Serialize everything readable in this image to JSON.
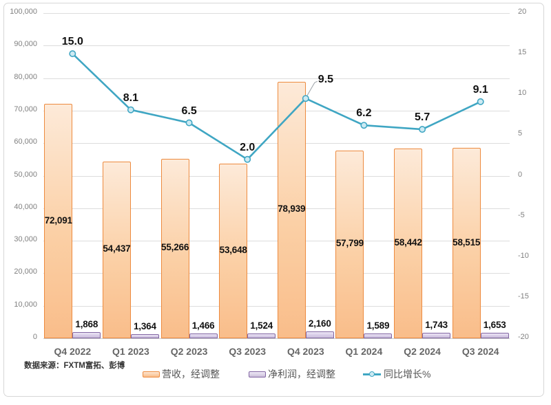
{
  "chart_data": {
    "type": "combo",
    "categories": [
      "Q4 2022",
      "Q1 2023",
      "Q2 2023",
      "Q3 2023",
      "Q4 2023",
      "Q1 2024",
      "Q2 2024",
      "Q3 2024"
    ],
    "series": [
      {
        "name": "营收，经调整",
        "type": "bar",
        "axis": "left",
        "color": "#ed8a3e",
        "values": [
          72091,
          54437,
          55266,
          53648,
          78939,
          57799,
          58442,
          58515
        ],
        "labels": [
          "72,091",
          "54,437",
          "55,266",
          "53,648",
          "78,939",
          "57,799",
          "58,442",
          "58,515"
        ]
      },
      {
        "name": "净利润，经调整",
        "type": "bar",
        "axis": "left",
        "color": "#8064a2",
        "values": [
          1868,
          1364,
          1466,
          1524,
          2160,
          1589,
          1743,
          1653
        ],
        "labels": [
          "1,868",
          "1,364",
          "1,466",
          "1,524",
          "2,160",
          "1,589",
          "1,743",
          "1,653"
        ]
      },
      {
        "name": "同比增长%",
        "type": "line",
        "axis": "right",
        "color": "#3fa6c3",
        "values": [
          15.0,
          8.1,
          6.5,
          2.0,
          9.5,
          6.2,
          5.7,
          9.1
        ],
        "labels": [
          "15.0",
          "8.1",
          "6.5",
          "2.0",
          "9.5",
          "6.2",
          "5.7",
          "9.1"
        ]
      }
    ],
    "left_axis": {
      "min": 0,
      "max": 100000,
      "step": 10000,
      "tick_labels": [
        "100,000",
        "90,000",
        "80,000",
        "70,000",
        "60,000",
        "50,000",
        "40,000",
        "30,000",
        "20,000",
        "10,000",
        "0"
      ]
    },
    "right_axis": {
      "min": -20,
      "max": 20,
      "step": 5,
      "tick_labels": [
        "20",
        "15",
        "10",
        "5",
        "0",
        "-5",
        "-10",
        "-15",
        "-20"
      ]
    },
    "grid": true,
    "legend_position": "bottom",
    "annotation_callout_index": 4
  },
  "source_note": "数据来源：FXTM富拓、彭博",
  "colors": {
    "revenue_border": "#ed8a3e",
    "revenue_fill": "#fbd0a6",
    "profit_border": "#8064a2",
    "profit_fill": "#d5c9e6",
    "growth_line": "#3fa6c3",
    "grid": "#dcdcdc",
    "axis_text": "#808080",
    "category_text": "#666666"
  }
}
